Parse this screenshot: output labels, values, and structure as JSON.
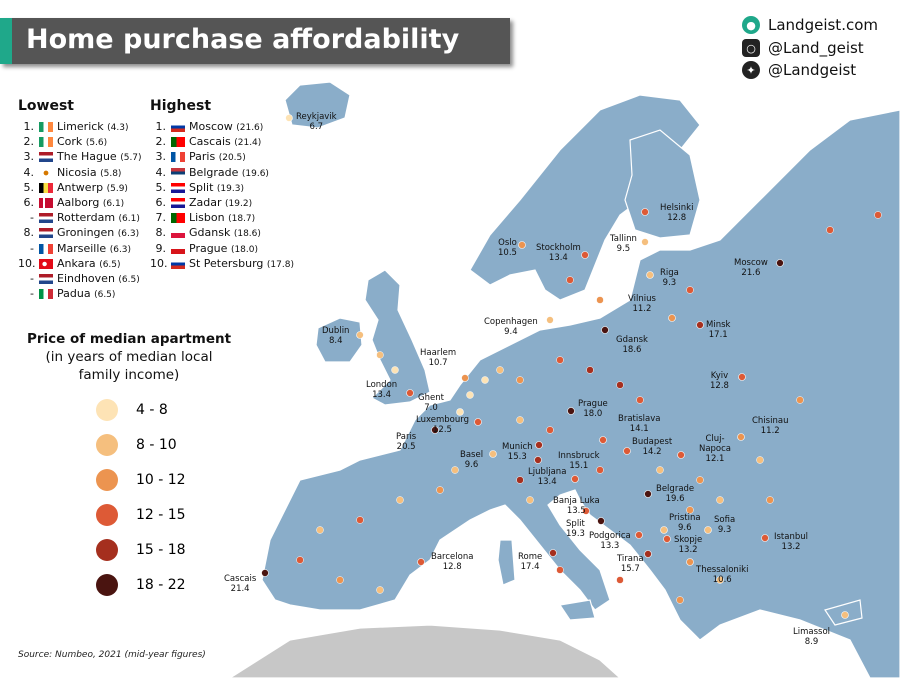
{
  "title": "Home purchase affordability",
  "social": [
    {
      "icon": "globe-icon",
      "text": "Landgeist.com",
      "color": "#1fa88a"
    },
    {
      "icon": "instagram-icon",
      "text": "@Land_geist",
      "color": "#222222"
    },
    {
      "icon": "twitter-icon",
      "text": "@Landgeist",
      "color": "#222222"
    }
  ],
  "lowest": {
    "heading": "Lowest",
    "items": [
      {
        "rank": "1.",
        "flag": "Ireland",
        "name": "Limerick",
        "value": "(4.3)"
      },
      {
        "rank": "2.",
        "flag": "Ireland",
        "name": "Cork",
        "value": "(5.6)"
      },
      {
        "rank": "3.",
        "flag": "Netherlands",
        "name": "The Hague",
        "value": "(5.7)"
      },
      {
        "rank": "4.",
        "flag": "Cyprus",
        "name": "Nicosia",
        "value": "(5.8)"
      },
      {
        "rank": "5.",
        "flag": "Belgium",
        "name": "Antwerp",
        "value": "(5.9)"
      },
      {
        "rank": "6.",
        "flag": "Denmark",
        "name": "Aalborg",
        "value": "(6.1)"
      },
      {
        "rank": "-",
        "flag": "Netherlands",
        "name": "Rotterdam",
        "value": "(6.1)"
      },
      {
        "rank": "8.",
        "flag": "Netherlands",
        "name": "Groningen",
        "value": "(6.3)"
      },
      {
        "rank": "-",
        "flag": "France",
        "name": "Marseille",
        "value": "(6.3)"
      },
      {
        "rank": "10.",
        "flag": "Turkey",
        "name": "Ankara",
        "value": "(6.5)"
      },
      {
        "rank": "-",
        "flag": "Netherlands",
        "name": "Eindhoven",
        "value": "(6.5)"
      },
      {
        "rank": "-",
        "flag": "Italy",
        "name": "Padua",
        "value": "(6.5)"
      }
    ]
  },
  "highest": {
    "heading": "Highest",
    "items": [
      {
        "rank": "1.",
        "flag": "Russia",
        "name": "Moscow",
        "value": "(21.6)"
      },
      {
        "rank": "2.",
        "flag": "Portugal",
        "name": "Cascais",
        "value": "(21.4)"
      },
      {
        "rank": "3.",
        "flag": "France",
        "name": "Paris",
        "value": "(20.5)"
      },
      {
        "rank": "4.",
        "flag": "Serbia",
        "name": "Belgrade",
        "value": "(19.6)"
      },
      {
        "rank": "5.",
        "flag": "Croatia",
        "name": "Split",
        "value": "(19.3)"
      },
      {
        "rank": "6.",
        "flag": "Croatia",
        "name": "Zadar",
        "value": "(19.2)"
      },
      {
        "rank": "7.",
        "flag": "Portugal",
        "name": "Lisbon",
        "value": "(18.7)"
      },
      {
        "rank": "8.",
        "flag": "Poland",
        "name": "Gdansk",
        "value": "(18.6)"
      },
      {
        "rank": "9.",
        "flag": "Czechia",
        "name": "Prague",
        "value": "(18.0)"
      },
      {
        "rank": "10.",
        "flag": "Russia",
        "name": "St Petersburg",
        "value": "(17.8)"
      }
    ]
  },
  "legend": {
    "title": "Price of median apartment",
    "subtitle": "(in years of median local family income)",
    "bins": [
      {
        "label": "4  -  8",
        "color": "#fde3b5"
      },
      {
        "label": "8  -  10",
        "color": "#f5bf7e"
      },
      {
        "label": "10  -  12",
        "color": "#ec9450"
      },
      {
        "label": "12  -  15",
        "color": "#dd5a36"
      },
      {
        "label": "15  -  18",
        "color": "#a52f1e"
      },
      {
        "label": "18  -  22",
        "color": "#4a1410"
      }
    ]
  },
  "cities": [
    {
      "name": "Reykjavik",
      "value": "6.7"
    },
    {
      "name": "Helsinki",
      "value": "12.8"
    },
    {
      "name": "Oslo",
      "value": "10.5"
    },
    {
      "name": "Stockholm",
      "value": "13.4"
    },
    {
      "name": "Tallinn",
      "value": "9.5"
    },
    {
      "name": "Moscow",
      "value": "21.6"
    },
    {
      "name": "Riga",
      "value": "9.3"
    },
    {
      "name": "Vilnius",
      "value": "11.2"
    },
    {
      "name": "Minsk",
      "value": "17.1"
    },
    {
      "name": "Dublin",
      "value": "8.4"
    },
    {
      "name": "Copenhagen",
      "value": "9.4"
    },
    {
      "name": "Gdansk",
      "value": "18.6"
    },
    {
      "name": "Haarlem",
      "value": "10.7"
    },
    {
      "name": "London",
      "value": "13.4"
    },
    {
      "name": "Kyiv",
      "value": "12.8"
    },
    {
      "name": "Ghent",
      "value": "7.0"
    },
    {
      "name": "Luxembourg",
      "value": "12.5"
    },
    {
      "name": "Paris",
      "value": "20.5"
    },
    {
      "name": "Prague",
      "value": "18.0"
    },
    {
      "name": "Bratislava",
      "value": "14.1"
    },
    {
      "name": "Budapest",
      "value": "14.2"
    },
    {
      "name": "Cluj-Napoca",
      "value": "12.1"
    },
    {
      "name": "Chisinau",
      "value": "11.2"
    },
    {
      "name": "Munich",
      "value": "15.3"
    },
    {
      "name": "Basel",
      "value": "9.6"
    },
    {
      "name": "Innsbruck",
      "value": "15.1"
    },
    {
      "name": "Ljubljana",
      "value": "13.4"
    },
    {
      "name": "Belgrade",
      "value": "19.6"
    },
    {
      "name": "Banja Luka",
      "value": "13.5"
    },
    {
      "name": "Split",
      "value": "19.3"
    },
    {
      "name": "Pristina",
      "value": "9.6"
    },
    {
      "name": "Sofia",
      "value": "9.3"
    },
    {
      "name": "Podgorica",
      "value": "13.3"
    },
    {
      "name": "Skopje",
      "value": "13.2"
    },
    {
      "name": "Istanbul",
      "value": "13.2"
    },
    {
      "name": "Tirana",
      "value": "15.7"
    },
    {
      "name": "Thessaloniki",
      "value": "10.6"
    },
    {
      "name": "Barcelona",
      "value": "12.8"
    },
    {
      "name": "Rome",
      "value": "17.4"
    },
    {
      "name": "Cascais",
      "value": "21.4"
    },
    {
      "name": "Limassol",
      "value": "8.9"
    }
  ],
  "source": "Source: Numbeo, 2021 (mid-year figures)",
  "colors": {
    "land": "#8aadc9",
    "sea": "#ffffff",
    "borders": "#ffffff",
    "title_bg": "#555555",
    "accent": "#1fa88a"
  }
}
